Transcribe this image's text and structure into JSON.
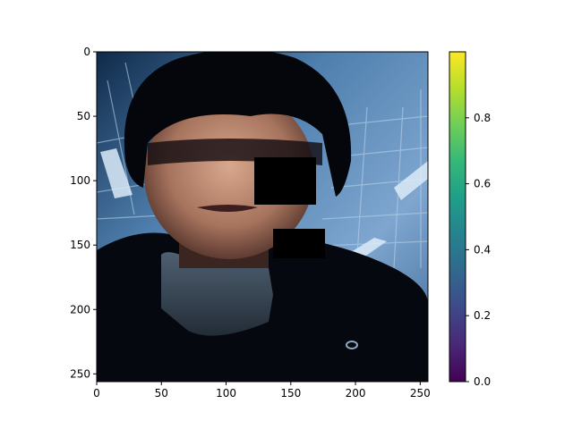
{
  "chart_data": {
    "type": "heatmap",
    "title": "",
    "xlabel": "",
    "ylabel": "",
    "image_extent": {
      "x": [
        0,
        256
      ],
      "y": [
        0,
        256
      ]
    },
    "x_ticks": [
      "0",
      "50",
      "100",
      "150",
      "200",
      "250"
    ],
    "y_ticks": [
      "0",
      "50",
      "100",
      "150",
      "200",
      "250"
    ],
    "colorbar": {
      "colormap": "viridis",
      "range": [
        0.0,
        1.0
      ],
      "ticks": [
        "0.0",
        "0.2",
        "0.4",
        "0.6",
        "0.8"
      ],
      "colors": [
        "#440154",
        "#482878",
        "#3e4989",
        "#31688e",
        "#26828e",
        "#1f9e89",
        "#35b779",
        "#6ece58",
        "#b5de2b",
        "#fde725"
      ]
    },
    "image_content": "photo of a young man with black hair, dark jacket and grey turtleneck against an office ceiling, with two black occlusion squares",
    "occlusion_boxes": [
      {
        "x": [
          122,
          170
        ],
        "y": [
          82,
          119
        ]
      },
      {
        "x": [
          136,
          176
        ],
        "y": [
          137,
          160
        ]
      }
    ]
  }
}
